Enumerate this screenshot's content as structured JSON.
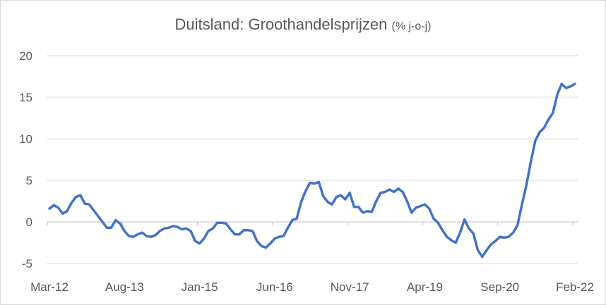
{
  "chart_data": {
    "type": "line",
    "title": "Duitsland: Groothandelsprijzen",
    "subtitle": "(% j-o-j)",
    "xlabel": "",
    "ylabel": "",
    "ylim": [
      -5,
      20
    ],
    "yticks": [
      "-5",
      "0",
      "5",
      "10",
      "15",
      "20"
    ],
    "ytick_values": [
      -5,
      0,
      5,
      10,
      15,
      20
    ],
    "xtick_labels": [
      "Mar-12",
      "Aug-13",
      "Jan-15",
      "Jun-16",
      "Nov-17",
      "Apr-19",
      "Sep-20",
      "Feb-22"
    ],
    "xtick_step_months": 17,
    "x_start": "Mar-12",
    "x_end": "Feb-22",
    "grid": true,
    "legend": "none",
    "series": [
      {
        "name": "Groothandelsprijzen",
        "color": "#4472c4",
        "values": [
          1.6,
          2.0,
          1.7,
          1.0,
          1.3,
          2.3,
          3.0,
          3.2,
          2.2,
          2.1,
          1.4,
          0.7,
          0.0,
          -0.7,
          -0.7,
          0.2,
          -0.2,
          -1.1,
          -1.7,
          -1.8,
          -1.5,
          -1.3,
          -1.7,
          -1.8,
          -1.6,
          -1.1,
          -0.8,
          -0.7,
          -0.5,
          -0.6,
          -0.9,
          -0.8,
          -1.1,
          -2.3,
          -2.6,
          -2.0,
          -1.1,
          -0.8,
          -0.1,
          -0.1,
          -0.2,
          -0.9,
          -1.5,
          -1.5,
          -1.0,
          -1.0,
          -1.1,
          -2.3,
          -2.9,
          -3.1,
          -2.6,
          -2.0,
          -1.8,
          -1.7,
          -0.7,
          0.2,
          0.4,
          2.4,
          3.7,
          4.7,
          4.6,
          4.8,
          3.1,
          2.4,
          2.1,
          3.0,
          3.2,
          2.7,
          3.5,
          1.8,
          1.8,
          1.1,
          1.3,
          1.2,
          2.5,
          3.5,
          3.6,
          3.9,
          3.6,
          4.0,
          3.6,
          2.5,
          1.1,
          1.7,
          1.9,
          2.1,
          1.6,
          0.4,
          -0.1,
          -1.0,
          -1.8,
          -2.2,
          -2.5,
          -1.3,
          0.3,
          -0.8,
          -1.4,
          -3.4,
          -4.2,
          -3.4,
          -2.7,
          -2.3,
          -1.8,
          -1.9,
          -1.8,
          -1.3,
          -0.4,
          2.1,
          4.4,
          7.2,
          9.7,
          10.8,
          11.3,
          12.3,
          13.1,
          15.3,
          16.6,
          16.1,
          16.3,
          16.6
        ]
      }
    ]
  }
}
